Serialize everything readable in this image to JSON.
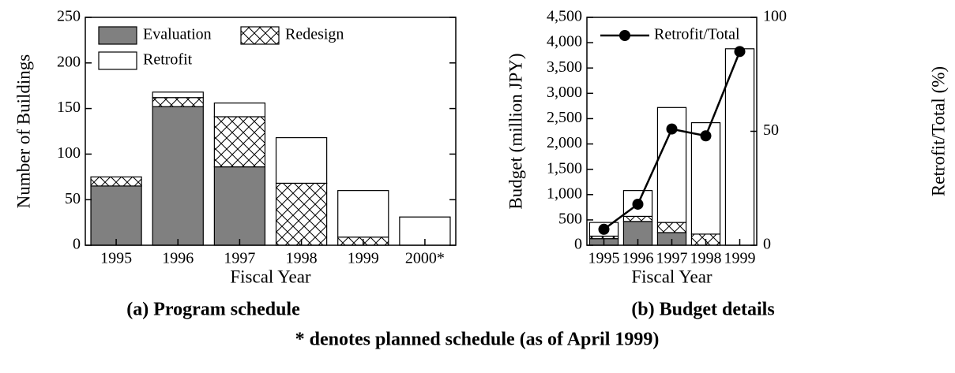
{
  "chart_data": [
    {
      "type": "bar",
      "stacked": true,
      "caption": "(a) Program schedule",
      "xlabel": "Fiscal Year",
      "ylabel": "Number of Buildings",
      "categories": [
        "1995",
        "1996",
        "1997",
        "1998",
        "1999",
        "2000*"
      ],
      "series": [
        {
          "name": "Evaluation",
          "color": "#808080",
          "values": [
            65,
            152,
            86,
            0,
            0,
            0
          ]
        },
        {
          "name": "Redesign",
          "color": "#ffffff",
          "hatch": "cross",
          "values": [
            10,
            10,
            55,
            68,
            9,
            0
          ]
        },
        {
          "name": "Retrofit",
          "color": "#ffffff",
          "values": [
            0,
            6,
            15,
            50,
            51,
            31
          ]
        }
      ],
      "ylim": [
        0,
        250
      ],
      "yticks": [
        0,
        50,
        100,
        150,
        200,
        250
      ],
      "legend": "upper left"
    },
    {
      "type": "bar",
      "stacked": true,
      "caption": "(b) Budget details",
      "xlabel": "Fiscal Year",
      "ylabel": "Budget (million JPY)",
      "y2label": "Retrofit/Total (%)",
      "categories": [
        "1995",
        "1996",
        "1997",
        "1998",
        "1999"
      ],
      "series": [
        {
          "color": "#808080",
          "values": [
            130,
            470,
            250,
            0,
            0
          ]
        },
        {
          "color": "#ffffff",
          "hatch": "cross",
          "values": [
            50,
            100,
            200,
            220,
            0
          ]
        },
        {
          "color": "#ffffff",
          "values": [
            270,
            510,
            2270,
            2200,
            3880
          ]
        },
        {
          "name": "Retrofit/Total",
          "type": "line",
          "axis": "y2",
          "color": "#000000",
          "values": [
            7,
            18,
            51,
            48,
            85
          ]
        }
      ],
      "ylim": [
        0,
        4500
      ],
      "yticks": [
        0,
        500,
        {
          "value": 1000,
          "label": "1,000"
        },
        {
          "value": 1500,
          "label": "1,500"
        },
        {
          "value": 2000,
          "label": "2,000"
        },
        {
          "value": 2500,
          "label": "2,500"
        },
        {
          "value": 3000,
          "label": "3,000"
        },
        {
          "value": 3500,
          "label": "3,500"
        },
        {
          "value": 4000,
          "label": "4,000"
        },
        {
          "value": 4500,
          "label": "4,500"
        }
      ],
      "y2lim": [
        0,
        100
      ],
      "y2ticks": [
        0,
        50,
        100
      ],
      "legend": "upper left"
    }
  ],
  "note": "* denotes planned schedule (as of April 1999)"
}
